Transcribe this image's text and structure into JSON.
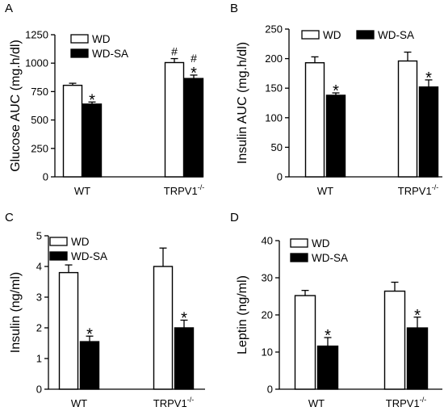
{
  "colors": {
    "wd": "#ffffff",
    "wd_sa": "#000000",
    "stroke": "#000000"
  },
  "chart_data": [
    {
      "panel": "A",
      "type": "bar",
      "ylabel": "Glucose AUC (mg.h/dl)",
      "ylim": [
        0,
        1250
      ],
      "yticks": [
        "0",
        "250",
        "500",
        "750",
        "1000",
        "1250"
      ],
      "categories": [
        {
          "label": "WT",
          "sup": ""
        },
        {
          "label": "TRPV1",
          "sup": "-/-"
        }
      ],
      "series": [
        {
          "name": "WD",
          "values": [
            805,
            1005
          ],
          "errors": [
            18,
            35
          ],
          "marks": [
            "",
            "#"
          ]
        },
        {
          "name": "WD-SA",
          "values": [
            640,
            865
          ],
          "errors": [
            18,
            30
          ],
          "marks": [
            "*",
            "#\n*"
          ]
        }
      ],
      "legend": "top-left"
    },
    {
      "panel": "B",
      "type": "bar",
      "ylabel": "Insulin AUC (mg.h/dl)",
      "ylim": [
        0,
        250
      ],
      "yticks": [
        "0",
        "50",
        "100",
        "150",
        "200",
        "250"
      ],
      "categories": [
        {
          "label": "WT",
          "sup": ""
        },
        {
          "label": "TRPV1",
          "sup": "-/-"
        }
      ],
      "series": [
        {
          "name": "WD",
          "values": [
            193,
            196
          ],
          "errors": [
            10,
            15
          ],
          "marks": [
            "",
            ""
          ]
        },
        {
          "name": "WD-SA",
          "values": [
            138,
            152
          ],
          "errors": [
            4,
            12
          ],
          "marks": [
            "*",
            "*"
          ]
        }
      ],
      "legend": "top"
    },
    {
      "panel": "C",
      "type": "bar",
      "ylabel": "Insulin (ng/ml)",
      "ylim": [
        0,
        5
      ],
      "yticks": [
        "0",
        "1",
        "2",
        "3",
        "4",
        "5"
      ],
      "categories": [
        {
          "label": "WT",
          "sup": ""
        },
        {
          "label": "TRPV1",
          "sup": "-/-"
        }
      ],
      "series": [
        {
          "name": "WD",
          "values": [
            3.8,
            4.0
          ],
          "errors": [
            0.25,
            0.6
          ],
          "marks": [
            "",
            ""
          ]
        },
        {
          "name": "WD-SA",
          "values": [
            1.55,
            2.0
          ],
          "errors": [
            0.18,
            0.25
          ],
          "marks": [
            "*",
            "*"
          ]
        }
      ],
      "legend": "top-left"
    },
    {
      "panel": "D",
      "type": "bar",
      "ylabel": "Leptin (ng/ml)",
      "ylim": [
        0,
        40
      ],
      "yticks": [
        "0",
        "10",
        "20",
        "30",
        "40"
      ],
      "categories": [
        {
          "label": "WT",
          "sup": ""
        },
        {
          "label": "TRPV1",
          "sup": "-/-"
        }
      ],
      "series": [
        {
          "name": "WD",
          "values": [
            25.2,
            26.4
          ],
          "errors": [
            1.4,
            2.4
          ],
          "marks": [
            "",
            ""
          ]
        },
        {
          "name": "WD-SA",
          "values": [
            11.6,
            16.5
          ],
          "errors": [
            2.3,
            2.9
          ],
          "marks": [
            "*",
            "*"
          ]
        }
      ],
      "legend": "top-left"
    }
  ]
}
